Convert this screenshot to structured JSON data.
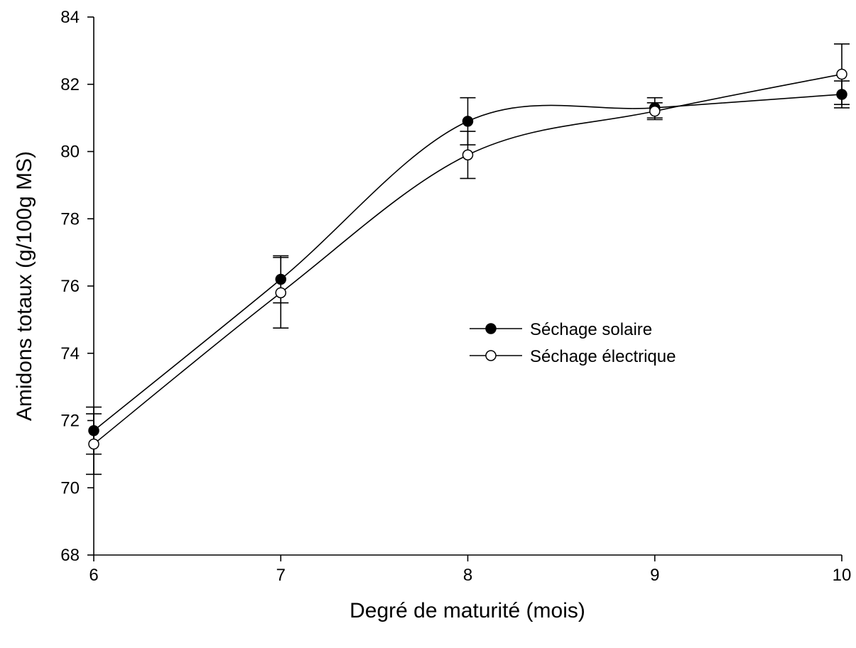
{
  "chart_data": {
    "type": "line",
    "title": "",
    "xlabel": "Degré de maturité (mois)",
    "ylabel": "Amidons totaux (g/100g MS)",
    "x": [
      6,
      7,
      8,
      9,
      10
    ],
    "xlim": [
      6,
      10
    ],
    "ylim": [
      68,
      84
    ],
    "xticks": [
      "6",
      "7",
      "8",
      "9",
      "10"
    ],
    "yticks": [
      "68",
      "70",
      "72",
      "74",
      "76",
      "78",
      "80",
      "82",
      "84"
    ],
    "grid": false,
    "legend_position": "center-right",
    "series": [
      {
        "name": "Séchage solaire",
        "marker": "filled-circle",
        "color": "#000000",
        "values": [
          71.7,
          76.2,
          80.9,
          81.3,
          81.7
        ],
        "errors": [
          0.7,
          0.7,
          0.7,
          0.3,
          0.4
        ]
      },
      {
        "name": "Séchage électrique",
        "marker": "open-circle",
        "color": "#000000",
        "values": [
          71.3,
          75.8,
          79.9,
          81.2,
          82.3
        ],
        "errors": [
          0.9,
          1.05,
          0.7,
          0.25,
          0.9
        ]
      }
    ]
  }
}
